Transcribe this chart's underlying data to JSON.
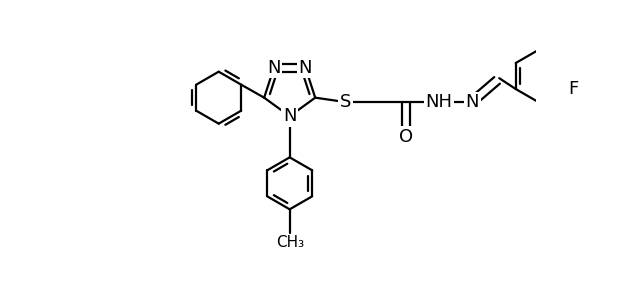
{
  "bg": "#ffffff",
  "lc": "#000000",
  "lw": 1.6,
  "fs": 13,
  "fs_small": 11,
  "figsize": [
    6.4,
    2.87
  ],
  "dpi": 100,
  "xlim": [
    0.0,
    10.0
  ],
  "ylim": [
    -3.0,
    3.5
  ],
  "dbo": 0.12
}
